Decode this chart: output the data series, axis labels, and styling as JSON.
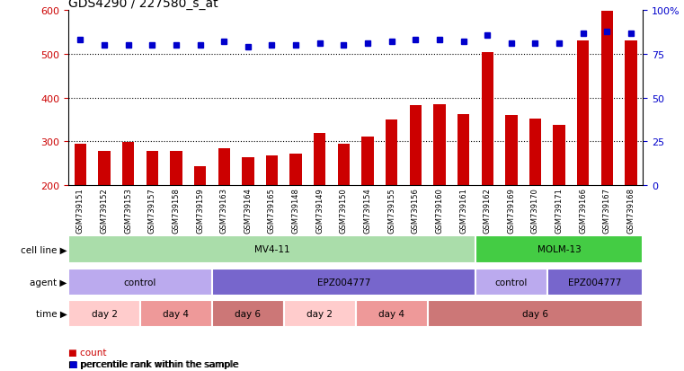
{
  "title": "GDS4290 / 227580_s_at",
  "samples": [
    "GSM739151",
    "GSM739152",
    "GSM739153",
    "GSM739157",
    "GSM739158",
    "GSM739159",
    "GSM739163",
    "GSM739164",
    "GSM739165",
    "GSM739148",
    "GSM739149",
    "GSM739150",
    "GSM739154",
    "GSM739155",
    "GSM739156",
    "GSM739160",
    "GSM739161",
    "GSM739162",
    "GSM739169",
    "GSM739170",
    "GSM739171",
    "GSM739166",
    "GSM739167",
    "GSM739168"
  ],
  "counts": [
    295,
    278,
    298,
    278,
    278,
    243,
    285,
    263,
    268,
    272,
    320,
    295,
    310,
    350,
    382,
    385,
    363,
    505,
    360,
    352,
    337,
    530,
    598,
    530
  ],
  "percentile_ranks": [
    83,
    80,
    80,
    80,
    80,
    80,
    82,
    79,
    80,
    80,
    81,
    80,
    81,
    82,
    83,
    83,
    82,
    86,
    81,
    81,
    81,
    87,
    88,
    87
  ],
  "ylim_left": [
    200,
    600
  ],
  "ylim_right": [
    0,
    100
  ],
  "yticks_left": [
    200,
    300,
    400,
    500,
    600
  ],
  "yticks_right": [
    0,
    25,
    50,
    75,
    100
  ],
  "ytick_labels_right": [
    "0",
    "25",
    "50",
    "75",
    "100%"
  ],
  "hlines": [
    300,
    400,
    500
  ],
  "bar_color": "#cc0000",
  "dot_color": "#0000cc",
  "cell_line_segments": [
    {
      "label": "MV4-11",
      "start": 0,
      "end": 17,
      "color": "#aaddaa"
    },
    {
      "label": "MOLM-13",
      "start": 17,
      "end": 24,
      "color": "#44cc44"
    }
  ],
  "agent_segments": [
    {
      "label": "control",
      "start": 0,
      "end": 6,
      "color": "#bbaaee"
    },
    {
      "label": "EPZ004777",
      "start": 6,
      "end": 17,
      "color": "#7766cc"
    },
    {
      "label": "control",
      "start": 17,
      "end": 20,
      "color": "#bbaaee"
    },
    {
      "label": "EPZ004777",
      "start": 20,
      "end": 24,
      "color": "#7766cc"
    }
  ],
  "time_segments": [
    {
      "label": "day 2",
      "start": 0,
      "end": 3,
      "color": "#ffcccc"
    },
    {
      "label": "day 4",
      "start": 3,
      "end": 6,
      "color": "#ee9999"
    },
    {
      "label": "day 6",
      "start": 6,
      "end": 9,
      "color": "#cc7777"
    },
    {
      "label": "day 2",
      "start": 9,
      "end": 12,
      "color": "#ffcccc"
    },
    {
      "label": "day 4",
      "start": 12,
      "end": 15,
      "color": "#ee9999"
    },
    {
      "label": "day 6",
      "start": 15,
      "end": 24,
      "color": "#cc7777"
    }
  ],
  "background_color": "#ffffff",
  "tick_fontsize": 8,
  "title_fontsize": 10
}
